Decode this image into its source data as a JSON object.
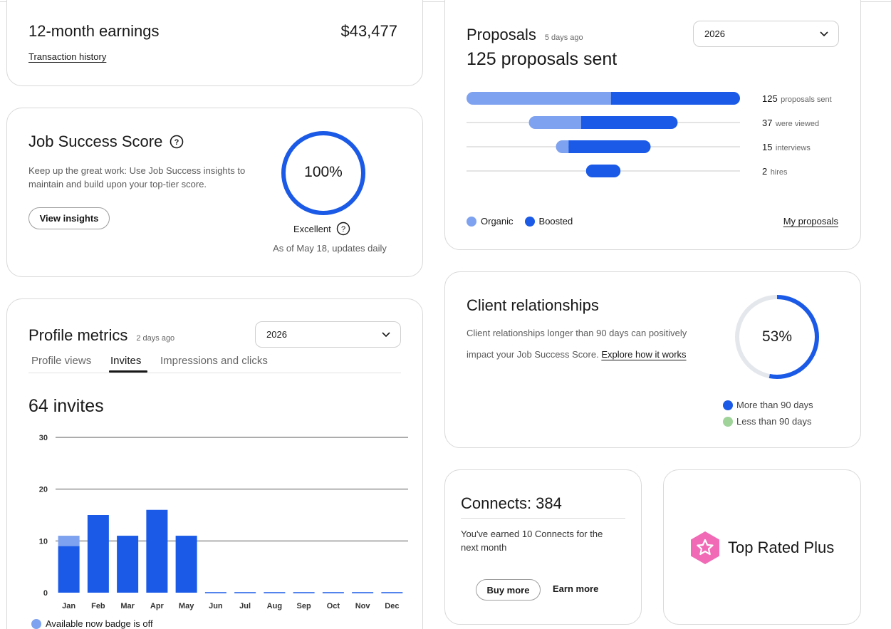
{
  "earnings": {
    "title": "12-month earnings",
    "amount": "$43,477",
    "link": "Transaction history"
  },
  "jss": {
    "title": "Job Success Score",
    "description": "Keep up the great work: Use Job Success insights to maintain and build upon your top-tier score.",
    "button": "View insights",
    "score_text": "100%",
    "score_value": 100,
    "rating": "Excellent",
    "updated": "As of May 18, updates daily",
    "ring_color": "#1a5ae6",
    "icon": "help-circle-icon"
  },
  "profile_metrics": {
    "title": "Profile metrics",
    "age": "2 days ago",
    "year": "2026",
    "tabs": [
      "Profile views",
      "Invites",
      "Impressions and clicks"
    ],
    "active_tab": "Invites",
    "headline": "64 invites",
    "footnote": "Available now badge is off",
    "chart_data": {
      "type": "bar",
      "stacked": true,
      "categories": [
        "Jan",
        "Feb",
        "Mar",
        "Apr",
        "May",
        "Jun",
        "Jul",
        "Aug",
        "Sep",
        "Oct",
        "Nov",
        "Dec"
      ],
      "series": [
        {
          "name": "",
          "color": "#1a5ae6",
          "values": [
            9,
            15,
            11,
            16,
            11,
            0,
            0,
            0,
            0,
            0,
            0,
            0
          ]
        },
        {
          "name": "",
          "color": "#7ea2ef",
          "values": [
            2,
            0,
            0,
            0,
            0,
            0,
            0,
            0,
            0,
            0,
            0,
            0
          ]
        }
      ],
      "yticks": [
        "0",
        "10",
        "20",
        "30"
      ],
      "ylim": [
        0,
        30
      ],
      "grid": true,
      "title": "",
      "xlabel": "",
      "ylabel": ""
    }
  },
  "proposals": {
    "title": "Proposals",
    "age": "5 days ago",
    "year": "2026",
    "headline": "125 proposals sent",
    "link": "My proposals",
    "legend": [
      {
        "label": "Organic",
        "color": "#7ea2ef"
      },
      {
        "label": "Boosted",
        "color": "#1a5ae6"
      }
    ],
    "funnel": [
      {
        "count": "125",
        "label": "proposals sent",
        "total": 125,
        "organic": 66,
        "boosted": 59
      },
      {
        "count": "37",
        "label": "were viewed",
        "total": 37,
        "organic": 13,
        "boosted": 24
      },
      {
        "count": "15",
        "label": "interviews",
        "total": 15,
        "organic": 2,
        "boosted": 13
      },
      {
        "count": "2",
        "label": "hires",
        "total": 2,
        "organic": 0,
        "boosted": 2
      }
    ]
  },
  "clients": {
    "title": "Client relationships",
    "description": "Client relationships longer than 90 days can positively impact your Job Success Score.",
    "link": "Explore how it works",
    "percent_text": "53%",
    "percent_value": 53,
    "legend": [
      {
        "label": "More than 90 days",
        "color": "#1a5ae6"
      },
      {
        "label": "Less than 90 days",
        "color": "#9fd39a"
      }
    ]
  },
  "connects": {
    "title": "Connects: 384",
    "text": "You've earned 10 Connects for the next month",
    "buy": "Buy more",
    "earn": "Earn more"
  },
  "badge": {
    "label": "Top Rated Plus",
    "icon": "top-rated-plus-badge-icon",
    "color": "#f06ab5"
  }
}
